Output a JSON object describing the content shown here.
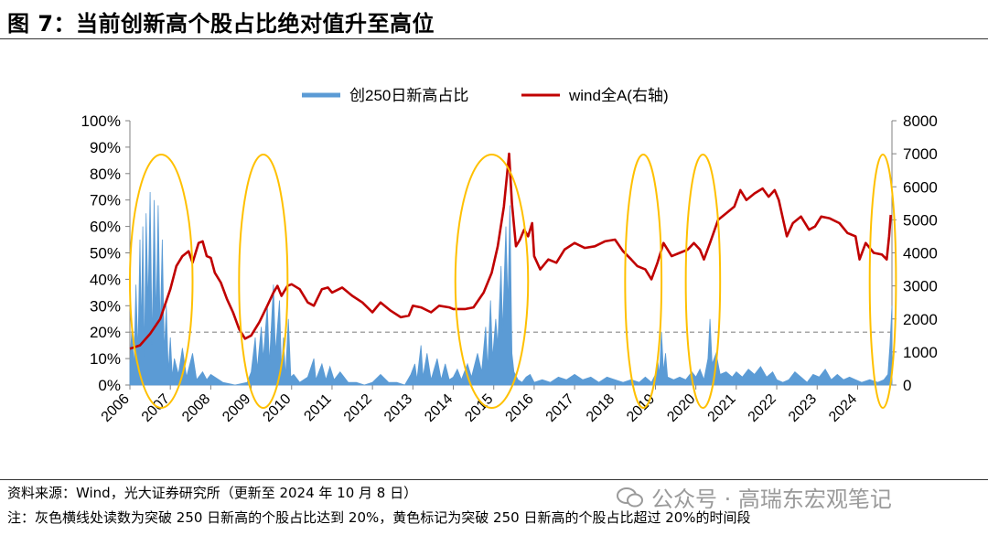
{
  "title": "图 7：当前创新高个股占比绝对值升至高位",
  "source": "资料来源：Wind，光大证券研究所（更新至 2024 年 10 月 8 日）",
  "note": "注：灰色横线处读数为突破 250 日新高的个股占比达到 20%，黄色标记为突破 250 日新高的个股占比超过 20%的时间段",
  "watermark": "公众号 · 高瑞东宏观笔记",
  "colors": {
    "bar": "#5B9BD5",
    "line": "#C00000",
    "ellipse": "#FFC000",
    "ref": "#A6A6A6"
  },
  "chart_data": {
    "type": "line",
    "legend": [
      "创250日新高占比",
      "wind全A(右轴)"
    ],
    "legend_position": "top-center",
    "x_ticks": [
      "2006",
      "2007",
      "2008",
      "2009",
      "2010",
      "2011",
      "2012",
      "2013",
      "2014",
      "2015",
      "2016",
      "2017",
      "2018",
      "2019",
      "2020",
      "2021",
      "2022",
      "2023",
      "2024"
    ],
    "y_left_ticks": [
      "0%",
      "10%",
      "20%",
      "30%",
      "40%",
      "50%",
      "60%",
      "70%",
      "80%",
      "90%",
      "100%"
    ],
    "y_right_ticks": [
      "0",
      "1000",
      "2000",
      "3000",
      "4000",
      "5000",
      "6000",
      "7000",
      "8000"
    ],
    "y_left_range": [
      0,
      100
    ],
    "y_right_range": [
      0,
      8000
    ],
    "x_range": [
      2006,
      2024.85
    ],
    "reference_line": 20,
    "series": [
      {
        "name": "wind全A(右轴)",
        "axis": "right",
        "points": [
          [
            2006.0,
            1100
          ],
          [
            2006.25,
            1200
          ],
          [
            2006.5,
            1550
          ],
          [
            2006.75,
            2000
          ],
          [
            2007.0,
            2900
          ],
          [
            2007.15,
            3600
          ],
          [
            2007.3,
            3900
          ],
          [
            2007.45,
            4050
          ],
          [
            2007.55,
            3700
          ],
          [
            2007.7,
            4300
          ],
          [
            2007.8,
            4350
          ],
          [
            2007.9,
            3900
          ],
          [
            2008.0,
            3850
          ],
          [
            2008.1,
            3400
          ],
          [
            2008.25,
            3100
          ],
          [
            2008.4,
            2600
          ],
          [
            2008.55,
            2200
          ],
          [
            2008.7,
            1700
          ],
          [
            2008.85,
            1400
          ],
          [
            2009.0,
            1500
          ],
          [
            2009.2,
            1900
          ],
          [
            2009.4,
            2400
          ],
          [
            2009.55,
            2800
          ],
          [
            2009.65,
            3000
          ],
          [
            2009.75,
            2700
          ],
          [
            2009.9,
            3000
          ],
          [
            2010.0,
            3050
          ],
          [
            2010.2,
            2900
          ],
          [
            2010.4,
            2500
          ],
          [
            2010.55,
            2400
          ],
          [
            2010.75,
            2900
          ],
          [
            2010.9,
            2950
          ],
          [
            2011.0,
            2800
          ],
          [
            2011.25,
            2950
          ],
          [
            2011.5,
            2700
          ],
          [
            2011.75,
            2500
          ],
          [
            2012.0,
            2200
          ],
          [
            2012.2,
            2500
          ],
          [
            2012.45,
            2250
          ],
          [
            2012.7,
            2050
          ],
          [
            2012.9,
            2100
          ],
          [
            2013.0,
            2400
          ],
          [
            2013.2,
            2350
          ],
          [
            2013.45,
            2200
          ],
          [
            2013.65,
            2400
          ],
          [
            2013.9,
            2350
          ],
          [
            2014.0,
            2300
          ],
          [
            2014.3,
            2300
          ],
          [
            2014.5,
            2350
          ],
          [
            2014.75,
            2800
          ],
          [
            2014.95,
            3400
          ],
          [
            2015.1,
            4200
          ],
          [
            2015.25,
            5400
          ],
          [
            2015.38,
            7000
          ],
          [
            2015.45,
            5500
          ],
          [
            2015.55,
            4200
          ],
          [
            2015.65,
            4400
          ],
          [
            2015.75,
            4700
          ],
          [
            2015.85,
            4500
          ],
          [
            2015.95,
            4900
          ],
          [
            2016.0,
            3900
          ],
          [
            2016.15,
            3500
          ],
          [
            2016.35,
            3800
          ],
          [
            2016.55,
            3700
          ],
          [
            2016.75,
            4100
          ],
          [
            2017.0,
            4300
          ],
          [
            2017.25,
            4150
          ],
          [
            2017.5,
            4200
          ],
          [
            2017.75,
            4350
          ],
          [
            2018.0,
            4400
          ],
          [
            2018.2,
            4050
          ],
          [
            2018.4,
            3800
          ],
          [
            2018.55,
            3600
          ],
          [
            2018.75,
            3500
          ],
          [
            2018.9,
            3200
          ],
          [
            2019.05,
            3700
          ],
          [
            2019.2,
            4300
          ],
          [
            2019.4,
            3900
          ],
          [
            2019.6,
            4000
          ],
          [
            2019.8,
            4100
          ],
          [
            2019.95,
            4300
          ],
          [
            2020.1,
            4100
          ],
          [
            2020.2,
            3800
          ],
          [
            2020.35,
            4300
          ],
          [
            2020.55,
            5000
          ],
          [
            2020.75,
            5200
          ],
          [
            2020.95,
            5400
          ],
          [
            2021.1,
            5900
          ],
          [
            2021.25,
            5600
          ],
          [
            2021.45,
            5800
          ],
          [
            2021.65,
            5950
          ],
          [
            2021.8,
            5700
          ],
          [
            2021.95,
            5900
          ],
          [
            2022.05,
            5600
          ],
          [
            2022.25,
            4500
          ],
          [
            2022.4,
            4900
          ],
          [
            2022.6,
            5100
          ],
          [
            2022.8,
            4700
          ],
          [
            2022.95,
            4800
          ],
          [
            2023.1,
            5100
          ],
          [
            2023.3,
            5050
          ],
          [
            2023.55,
            4900
          ],
          [
            2023.75,
            4600
          ],
          [
            2023.95,
            4500
          ],
          [
            2024.05,
            3800
          ],
          [
            2024.2,
            4300
          ],
          [
            2024.4,
            4000
          ],
          [
            2024.6,
            3950
          ],
          [
            2024.72,
            3800
          ],
          [
            2024.78,
            4500
          ],
          [
            2024.82,
            5150
          ]
        ]
      },
      {
        "name": "创250日新高占比",
        "axis": "left",
        "points": [
          [
            2006.0,
            8
          ],
          [
            2006.05,
            22
          ],
          [
            2006.1,
            6
          ],
          [
            2006.15,
            38
          ],
          [
            2006.2,
            12
          ],
          [
            2006.25,
            55
          ],
          [
            2006.28,
            20
          ],
          [
            2006.32,
            60
          ],
          [
            2006.36,
            10
          ],
          [
            2006.4,
            65
          ],
          [
            2006.45,
            30
          ],
          [
            2006.5,
            73
          ],
          [
            2006.55,
            15
          ],
          [
            2006.6,
            70
          ],
          [
            2006.65,
            25
          ],
          [
            2006.7,
            68
          ],
          [
            2006.75,
            20
          ],
          [
            2006.8,
            55
          ],
          [
            2006.85,
            12
          ],
          [
            2006.9,
            30
          ],
          [
            2006.95,
            5
          ],
          [
            2007.0,
            18
          ],
          [
            2007.05,
            3
          ],
          [
            2007.1,
            10
          ],
          [
            2007.2,
            4
          ],
          [
            2007.3,
            14
          ],
          [
            2007.4,
            3
          ],
          [
            2007.55,
            12
          ],
          [
            2007.65,
            2
          ],
          [
            2007.8,
            5
          ],
          [
            2007.9,
            2
          ],
          [
            2008.0,
            4
          ],
          [
            2008.3,
            1
          ],
          [
            2008.6,
            0
          ],
          [
            2008.9,
            1
          ],
          [
            2009.0,
            5
          ],
          [
            2009.1,
            18
          ],
          [
            2009.15,
            6
          ],
          [
            2009.25,
            22
          ],
          [
            2009.3,
            10
          ],
          [
            2009.4,
            30
          ],
          [
            2009.45,
            8
          ],
          [
            2009.55,
            38
          ],
          [
            2009.6,
            12
          ],
          [
            2009.7,
            32
          ],
          [
            2009.75,
            6
          ],
          [
            2009.8,
            18
          ],
          [
            2009.85,
            3
          ],
          [
            2009.92,
            25
          ],
          [
            2009.98,
            3
          ],
          [
            2010.05,
            4
          ],
          [
            2010.2,
            1
          ],
          [
            2010.4,
            3
          ],
          [
            2010.55,
            10
          ],
          [
            2010.6,
            2
          ],
          [
            2010.75,
            8
          ],
          [
            2010.85,
            2
          ],
          [
            2010.95,
            7
          ],
          [
            2011.05,
            2
          ],
          [
            2011.2,
            5
          ],
          [
            2011.4,
            1
          ],
          [
            2011.6,
            1
          ],
          [
            2011.8,
            0
          ],
          [
            2012.0,
            1
          ],
          [
            2012.2,
            4
          ],
          [
            2012.4,
            1
          ],
          [
            2012.6,
            1
          ],
          [
            2012.8,
            0
          ],
          [
            2012.95,
            4
          ],
          [
            2013.05,
            8
          ],
          [
            2013.1,
            2
          ],
          [
            2013.2,
            15
          ],
          [
            2013.25,
            3
          ],
          [
            2013.35,
            12
          ],
          [
            2013.45,
            2
          ],
          [
            2013.6,
            10
          ],
          [
            2013.7,
            2
          ],
          [
            2013.8,
            8
          ],
          [
            2013.9,
            2
          ],
          [
            2014.0,
            3
          ],
          [
            2014.1,
            6
          ],
          [
            2014.2,
            2
          ],
          [
            2014.35,
            8
          ],
          [
            2014.45,
            3
          ],
          [
            2014.6,
            12
          ],
          [
            2014.7,
            5
          ],
          [
            2014.8,
            22
          ],
          [
            2014.85,
            6
          ],
          [
            2014.92,
            32
          ],
          [
            2014.97,
            10
          ],
          [
            2015.05,
            25
          ],
          [
            2015.1,
            15
          ],
          [
            2015.18,
            45
          ],
          [
            2015.22,
            20
          ],
          [
            2015.3,
            60
          ],
          [
            2015.35,
            30
          ],
          [
            2015.4,
            68
          ],
          [
            2015.45,
            12
          ],
          [
            2015.5,
            5
          ],
          [
            2015.6,
            2
          ],
          [
            2015.7,
            1
          ],
          [
            2015.8,
            3
          ],
          [
            2015.9,
            4
          ],
          [
            2016.0,
            1
          ],
          [
            2016.2,
            2
          ],
          [
            2016.4,
            1
          ],
          [
            2016.6,
            3
          ],
          [
            2016.8,
            2
          ],
          [
            2017.0,
            4
          ],
          [
            2017.2,
            2
          ],
          [
            2017.4,
            3
          ],
          [
            2017.6,
            1
          ],
          [
            2017.8,
            3
          ],
          [
            2018.0,
            2
          ],
          [
            2018.2,
            1
          ],
          [
            2018.4,
            2
          ],
          [
            2018.6,
            1
          ],
          [
            2018.75,
            3
          ],
          [
            2018.9,
            1
          ],
          [
            2019.0,
            4
          ],
          [
            2019.05,
            10
          ],
          [
            2019.1,
            4
          ],
          [
            2019.15,
            20
          ],
          [
            2019.2,
            5
          ],
          [
            2019.25,
            12
          ],
          [
            2019.3,
            3
          ],
          [
            2019.45,
            2
          ],
          [
            2019.6,
            3
          ],
          [
            2019.75,
            2
          ],
          [
            2019.9,
            5
          ],
          [
            2020.0,
            3
          ],
          [
            2020.1,
            6
          ],
          [
            2020.2,
            2
          ],
          [
            2020.3,
            10
          ],
          [
            2020.35,
            25
          ],
          [
            2020.4,
            8
          ],
          [
            2020.5,
            12
          ],
          [
            2020.6,
            4
          ],
          [
            2020.75,
            5
          ],
          [
            2020.9,
            3
          ],
          [
            2021.0,
            5
          ],
          [
            2021.15,
            3
          ],
          [
            2021.3,
            6
          ],
          [
            2021.45,
            4
          ],
          [
            2021.6,
            7
          ],
          [
            2021.75,
            3
          ],
          [
            2021.9,
            5
          ],
          [
            2022.0,
            2
          ],
          [
            2022.15,
            1
          ],
          [
            2022.3,
            2
          ],
          [
            2022.45,
            5
          ],
          [
            2022.6,
            3
          ],
          [
            2022.75,
            1
          ],
          [
            2022.9,
            4
          ],
          [
            2023.05,
            3
          ],
          [
            2023.2,
            6
          ],
          [
            2023.35,
            2
          ],
          [
            2023.5,
            4
          ],
          [
            2023.65,
            2
          ],
          [
            2023.8,
            3
          ],
          [
            2023.95,
            2
          ],
          [
            2024.1,
            1
          ],
          [
            2024.3,
            2
          ],
          [
            2024.5,
            1
          ],
          [
            2024.65,
            2
          ],
          [
            2024.75,
            4
          ],
          [
            2024.8,
            15
          ],
          [
            2024.85,
            30
          ]
        ]
      }
    ],
    "highlight_periods": [
      [
        2006.0,
        2007.55
      ],
      [
        2008.7,
        2009.9
      ],
      [
        2014.05,
        2015.85
      ],
      [
        2018.25,
        2019.15
      ],
      [
        2019.75,
        2020.6
      ],
      [
        2024.3,
        2024.95
      ]
    ]
  }
}
